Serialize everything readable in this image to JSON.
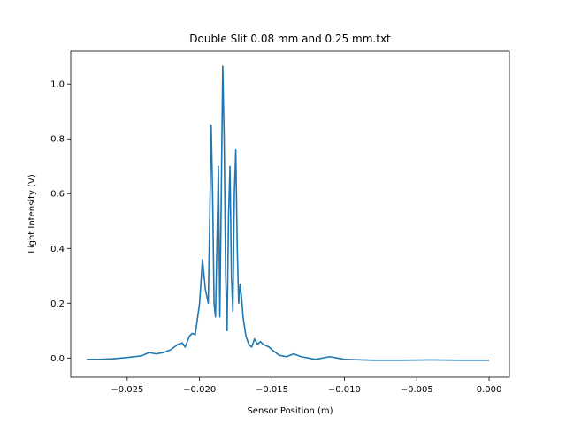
{
  "chart_data": {
    "type": "line",
    "title": "Double Slit 0.08 mm and 0.25 mm.txt",
    "xlabel": "Sensor Position (m)",
    "ylabel": "Light Intensity (V)",
    "xlim": [
      -0.0289,
      0.0014
    ],
    "ylim": [
      -0.07,
      1.12
    ],
    "xticks": [
      -0.025,
      -0.02,
      -0.015,
      -0.01,
      -0.005,
      0.0
    ],
    "xtick_labels": [
      "−0.025",
      "−0.020",
      "−0.015",
      "−0.010",
      "−0.005",
      "0.000"
    ],
    "yticks": [
      0.0,
      0.2,
      0.4,
      0.6,
      0.8,
      1.0
    ],
    "ytick_labels": [
      "0.0",
      "0.2",
      "0.4",
      "0.6",
      "0.8",
      "1.0"
    ],
    "grid": false,
    "legend": "none",
    "series": [
      {
        "color": "#1f77b4",
        "x": [
          -0.0278,
          -0.027,
          -0.026,
          -0.025,
          -0.0245,
          -0.024,
          -0.0235,
          -0.023,
          -0.0225,
          -0.022,
          -0.0215,
          -0.0212,
          -0.021,
          -0.0207,
          -0.0205,
          -0.0203,
          -0.02,
          -0.0198,
          -0.0196,
          -0.0194,
          -0.0193,
          -0.0192,
          -0.0191,
          -0.019,
          -0.0189,
          -0.0188,
          -0.0187,
          -0.0186,
          -0.0185,
          -0.0184,
          -0.0183,
          -0.0182,
          -0.0181,
          -0.018,
          -0.0179,
          -0.0178,
          -0.0177,
          -0.0176,
          -0.0175,
          -0.0174,
          -0.0173,
          -0.0172,
          -0.0171,
          -0.017,
          -0.0168,
          -0.0166,
          -0.0164,
          -0.0162,
          -0.016,
          -0.0158,
          -0.0156,
          -0.0154,
          -0.0152,
          -0.015,
          -0.0145,
          -0.014,
          -0.0135,
          -0.013,
          -0.012,
          -0.011,
          -0.01,
          -0.008,
          -0.006,
          -0.004,
          -0.002,
          0.0
        ],
        "y": [
          -0.005,
          -0.005,
          -0.003,
          0.002,
          0.005,
          0.008,
          0.02,
          0.015,
          0.02,
          0.03,
          0.05,
          0.055,
          0.04,
          0.08,
          0.09,
          0.085,
          0.2,
          0.36,
          0.25,
          0.2,
          0.5,
          0.85,
          0.6,
          0.2,
          0.15,
          0.42,
          0.7,
          0.15,
          0.6,
          1.065,
          0.8,
          0.3,
          0.1,
          0.52,
          0.7,
          0.3,
          0.17,
          0.6,
          0.76,
          0.4,
          0.2,
          0.27,
          0.22,
          0.15,
          0.08,
          0.05,
          0.04,
          0.07,
          0.05,
          0.06,
          0.05,
          0.045,
          0.04,
          0.03,
          0.01,
          0.005,
          0.015,
          0.005,
          -0.005,
          0.005,
          -0.005,
          -0.008,
          -0.008,
          -0.007,
          -0.008,
          -0.008
        ]
      }
    ]
  }
}
